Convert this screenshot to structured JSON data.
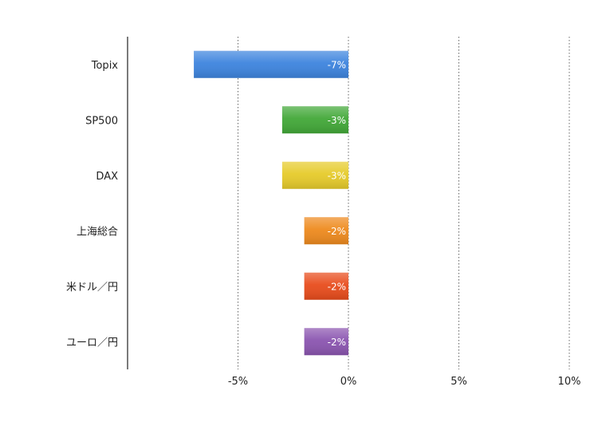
{
  "chart_data": {
    "type": "bar",
    "orientation": "horizontal",
    "categories": [
      "Topix",
      "SP500",
      "DAX",
      "上海総合",
      "米ドル／円",
      "ユーロ／円"
    ],
    "values": [
      -7,
      -3,
      -3,
      -2,
      -2,
      -2
    ],
    "data_labels": [
      "-7%",
      "-3%",
      "-3%",
      "-2%",
      "-2%",
      "-2%"
    ],
    "bar_colors": [
      "#3d84de",
      "#42a838",
      "#e6cb2a",
      "#ee8a1e",
      "#e84c1c",
      "#8b55b0"
    ],
    "xlim": [
      -10,
      10
    ],
    "x_ticks": [
      -5,
      0,
      5,
      10
    ],
    "x_tick_labels": [
      "-5%",
      "0%",
      "5%",
      "10%"
    ],
    "grid": "vertical dotted",
    "legend": "none"
  }
}
